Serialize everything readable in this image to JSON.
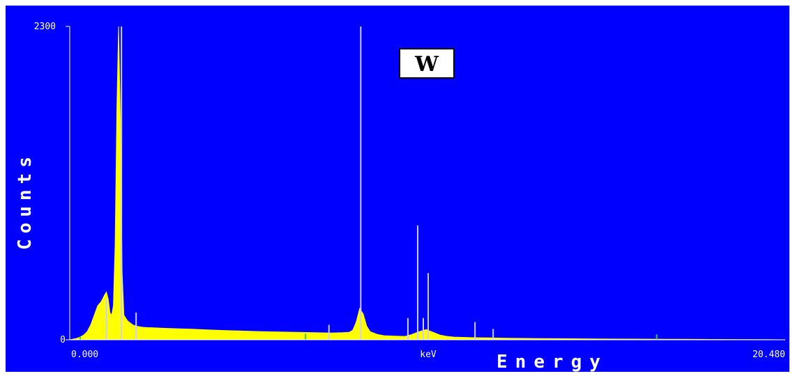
{
  "chart_data": {
    "type": "area",
    "title": "",
    "xlabel": "Energy",
    "ylabel": "Counts",
    "x_unit": "keV",
    "xlim": [
      0.0,
      20.48
    ],
    "ylim": [
      0,
      2300
    ],
    "x_tick_labels": [
      "0.000",
      "20.480"
    ],
    "y_tick_labels": [
      "0",
      "2300"
    ],
    "annotation": "W",
    "colors": {
      "background": "#0000ff",
      "spectrum": "#ffff00",
      "markers": "#ccccff",
      "minor_marker": "#33cc33",
      "text": "#ffffff",
      "annotation_box": "#ffffff",
      "annotation_text": "#000000"
    },
    "series": [
      {
        "x": [
          0.0,
          0.1,
          0.2,
          0.3,
          0.4,
          0.5,
          0.6,
          0.7,
          0.8,
          0.9,
          1.0,
          1.05,
          1.1,
          1.15,
          1.2,
          1.25,
          1.3,
          1.35,
          1.4,
          1.45,
          1.5,
          1.55,
          1.6,
          1.65,
          1.7,
          1.75,
          1.8,
          1.85,
          1.9,
          1.95,
          2.0,
          2.1,
          2.2,
          2.4,
          2.6,
          2.8,
          3.0,
          3.5,
          4.0,
          4.5,
          5.0,
          5.5,
          6.0,
          6.5,
          7.0,
          7.5,
          7.8,
          8.0,
          8.1,
          8.2,
          8.3,
          8.4,
          8.5,
          8.6,
          8.8,
          9.0,
          9.2,
          9.4,
          9.6,
          9.8,
          10.0,
          10.2,
          10.4,
          10.6,
          10.8,
          11.0,
          11.5,
          12.0,
          12.5,
          13.0,
          13.5,
          14.0,
          15.0,
          16.0,
          17.0,
          18.0,
          19.0,
          20.0,
          20.48
        ],
        "y": [
          0,
          5,
          10,
          20,
          35,
          60,
          110,
          180,
          250,
          280,
          330,
          350,
          300,
          200,
          180,
          250,
          700,
          1700,
          2300,
          1600,
          500,
          180,
          160,
          140,
          130,
          120,
          110,
          105,
          100,
          98,
          95,
          92,
          90,
          88,
          86,
          84,
          82,
          78,
          72,
          68,
          64,
          60,
          58,
          55,
          52,
          50,
          52,
          55,
          70,
          130,
          230,
          190,
          100,
          60,
          40,
          30,
          28,
          26,
          25,
          40,
          60,
          75,
          55,
          35,
          25,
          20,
          16,
          14,
          12,
          10,
          9,
          8,
          6,
          5,
          4,
          3,
          2,
          1,
          0
        ]
      }
    ],
    "markers": [
      {
        "x": 1.05,
        "y": 300
      },
      {
        "x": 1.48,
        "y": 2300
      },
      {
        "x": 1.9,
        "y": 200
      },
      {
        "x": 8.33,
        "y": 2300
      },
      {
        "x": 7.42,
        "y": 110
      },
      {
        "x": 9.68,
        "y": 160
      },
      {
        "x": 9.96,
        "y": 840
      },
      {
        "x": 10.12,
        "y": 160
      },
      {
        "x": 10.26,
        "y": 490
      },
      {
        "x": 11.6,
        "y": 130
      },
      {
        "x": 12.12,
        "y": 80
      }
    ],
    "minor_markers": [
      {
        "x": 0.3,
        "y": 20
      },
      {
        "x": 6.75,
        "y": 45
      },
      {
        "x": 16.8,
        "y": 40
      }
    ]
  }
}
